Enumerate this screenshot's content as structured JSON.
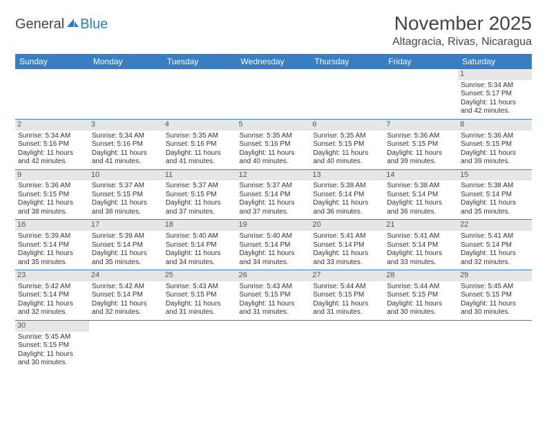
{
  "logo": {
    "text1": "General",
    "text2": "Blue"
  },
  "title": "November 2025",
  "location": "Altagracia, Rivas, Nicaragua",
  "colors": {
    "header_bg": "#3a7ec1",
    "header_fg": "#ffffff",
    "daynum_bg": "#e6e6e6",
    "border": "#3a7ec1",
    "logo_accent": "#2d7cc0"
  },
  "weekdays": [
    "Sunday",
    "Monday",
    "Tuesday",
    "Wednesday",
    "Thursday",
    "Friday",
    "Saturday"
  ],
  "days": {
    "1": {
      "sr": "5:34 AM",
      "ss": "5:17 PM",
      "dl": "11 hours and 42 minutes."
    },
    "2": {
      "sr": "5:34 AM",
      "ss": "5:16 PM",
      "dl": "11 hours and 42 minutes."
    },
    "3": {
      "sr": "5:34 AM",
      "ss": "5:16 PM",
      "dl": "11 hours and 41 minutes."
    },
    "4": {
      "sr": "5:35 AM",
      "ss": "5:16 PM",
      "dl": "11 hours and 41 minutes."
    },
    "5": {
      "sr": "5:35 AM",
      "ss": "5:16 PM",
      "dl": "11 hours and 40 minutes."
    },
    "6": {
      "sr": "5:35 AM",
      "ss": "5:15 PM",
      "dl": "11 hours and 40 minutes."
    },
    "7": {
      "sr": "5:36 AM",
      "ss": "5:15 PM",
      "dl": "11 hours and 39 minutes."
    },
    "8": {
      "sr": "5:36 AM",
      "ss": "5:15 PM",
      "dl": "11 hours and 39 minutes."
    },
    "9": {
      "sr": "5:36 AM",
      "ss": "5:15 PM",
      "dl": "11 hours and 38 minutes."
    },
    "10": {
      "sr": "5:37 AM",
      "ss": "5:15 PM",
      "dl": "11 hours and 38 minutes."
    },
    "11": {
      "sr": "5:37 AM",
      "ss": "5:15 PM",
      "dl": "11 hours and 37 minutes."
    },
    "12": {
      "sr": "5:37 AM",
      "ss": "5:14 PM",
      "dl": "11 hours and 37 minutes."
    },
    "13": {
      "sr": "5:38 AM",
      "ss": "5:14 PM",
      "dl": "11 hours and 36 minutes."
    },
    "14": {
      "sr": "5:38 AM",
      "ss": "5:14 PM",
      "dl": "11 hours and 36 minutes."
    },
    "15": {
      "sr": "5:38 AM",
      "ss": "5:14 PM",
      "dl": "11 hours and 35 minutes."
    },
    "16": {
      "sr": "5:39 AM",
      "ss": "5:14 PM",
      "dl": "11 hours and 35 minutes."
    },
    "17": {
      "sr": "5:39 AM",
      "ss": "5:14 PM",
      "dl": "11 hours and 35 minutes."
    },
    "18": {
      "sr": "5:40 AM",
      "ss": "5:14 PM",
      "dl": "11 hours and 34 minutes."
    },
    "19": {
      "sr": "5:40 AM",
      "ss": "5:14 PM",
      "dl": "11 hours and 34 minutes."
    },
    "20": {
      "sr": "5:41 AM",
      "ss": "5:14 PM",
      "dl": "11 hours and 33 minutes."
    },
    "21": {
      "sr": "5:41 AM",
      "ss": "5:14 PM",
      "dl": "11 hours and 33 minutes."
    },
    "22": {
      "sr": "5:41 AM",
      "ss": "5:14 PM",
      "dl": "11 hours and 32 minutes."
    },
    "23": {
      "sr": "5:42 AM",
      "ss": "5:14 PM",
      "dl": "11 hours and 32 minutes."
    },
    "24": {
      "sr": "5:42 AM",
      "ss": "5:14 PM",
      "dl": "11 hours and 32 minutes."
    },
    "25": {
      "sr": "5:43 AM",
      "ss": "5:15 PM",
      "dl": "11 hours and 31 minutes."
    },
    "26": {
      "sr": "5:43 AM",
      "ss": "5:15 PM",
      "dl": "11 hours and 31 minutes."
    },
    "27": {
      "sr": "5:44 AM",
      "ss": "5:15 PM",
      "dl": "11 hours and 31 minutes."
    },
    "28": {
      "sr": "5:44 AM",
      "ss": "5:15 PM",
      "dl": "11 hours and 30 minutes."
    },
    "29": {
      "sr": "5:45 AM",
      "ss": "5:15 PM",
      "dl": "11 hours and 30 minutes."
    },
    "30": {
      "sr": "5:45 AM",
      "ss": "5:15 PM",
      "dl": "11 hours and 30 minutes."
    }
  },
  "labels": {
    "sunrise": "Sunrise: ",
    "sunset": "Sunset: ",
    "daylight": "Daylight: "
  },
  "grid": [
    [
      null,
      null,
      null,
      null,
      null,
      null,
      "1"
    ],
    [
      "2",
      "3",
      "4",
      "5",
      "6",
      "7",
      "8"
    ],
    [
      "9",
      "10",
      "11",
      "12",
      "13",
      "14",
      "15"
    ],
    [
      "16",
      "17",
      "18",
      "19",
      "20",
      "21",
      "22"
    ],
    [
      "23",
      "24",
      "25",
      "26",
      "27",
      "28",
      "29"
    ],
    [
      "30",
      null,
      null,
      null,
      null,
      null,
      null
    ]
  ]
}
